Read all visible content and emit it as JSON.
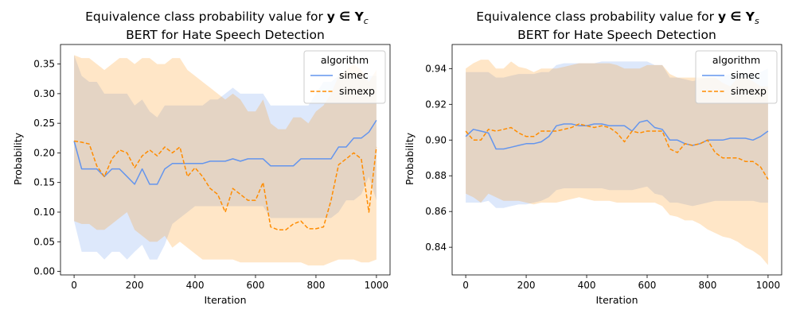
{
  "chart_data": [
    {
      "type": "line",
      "title_line1": "Equivalence class probability value for",
      "title_math": "y ∈ Y",
      "title_sub": "c",
      "title_line2": "BERT for Hate Speech Detection",
      "xlabel": "Iteration",
      "ylabel": "Probability",
      "xlim": [
        -45,
        1045
      ],
      "ylim": [
        -0.006,
        0.383
      ],
      "xticks": [
        0,
        200,
        400,
        600,
        800,
        1000
      ],
      "xtick_labels": [
        "0",
        "200",
        "400",
        "600",
        "800",
        "1000"
      ],
      "yticks": [
        0,
        0.05,
        0.1,
        0.15,
        0.2,
        0.25,
        0.3,
        0.35
      ],
      "ytick_labels": [
        "0.00",
        "0.05",
        "0.10",
        "0.15",
        "0.20",
        "0.25",
        "0.30",
        "0.35"
      ],
      "legend": {
        "title": "algorithm",
        "entries": [
          "simec",
          "simexp"
        ],
        "position": "top-right"
      },
      "x": [
        0,
        25,
        50,
        75,
        100,
        125,
        150,
        175,
        200,
        225,
        250,
        275,
        300,
        325,
        350,
        375,
        400,
        425,
        450,
        475,
        500,
        525,
        550,
        575,
        600,
        625,
        650,
        675,
        700,
        725,
        750,
        775,
        800,
        825,
        850,
        875,
        900,
        925,
        950,
        975,
        1000
      ],
      "series": [
        {
          "name": "simec",
          "color": "#6495ed",
          "dashed": false,
          "values": [
            0.22,
            0.173,
            0.173,
            0.173,
            0.16,
            0.173,
            0.173,
            0.16,
            0.147,
            0.173,
            0.147,
            0.147,
            0.173,
            0.182,
            0.182,
            0.182,
            0.182,
            0.182,
            0.186,
            0.186,
            0.186,
            0.19,
            0.186,
            0.19,
            0.19,
            0.19,
            0.178,
            0.178,
            0.178,
            0.178,
            0.19,
            0.19,
            0.19,
            0.19,
            0.19,
            0.21,
            0.21,
            0.225,
            0.225,
            0.235,
            0.255
          ],
          "lower": [
            0.085,
            0.033,
            0.033,
            0.033,
            0.02,
            0.033,
            0.033,
            0.02,
            0.033,
            0.045,
            0.02,
            0.02,
            0.045,
            0.08,
            0.09,
            0.1,
            0.11,
            0.11,
            0.11,
            0.11,
            0.11,
            0.11,
            0.11,
            0.11,
            0.11,
            0.11,
            0.09,
            0.09,
            0.09,
            0.09,
            0.09,
            0.09,
            0.09,
            0.09,
            0.09,
            0.1,
            0.12,
            0.12,
            0.13,
            0.16,
            0.12
          ],
          "upper": [
            0.365,
            0.33,
            0.32,
            0.32,
            0.3,
            0.3,
            0.3,
            0.3,
            0.28,
            0.29,
            0.27,
            0.26,
            0.28,
            0.28,
            0.28,
            0.28,
            0.28,
            0.28,
            0.29,
            0.29,
            0.3,
            0.31,
            0.3,
            0.3,
            0.3,
            0.3,
            0.28,
            0.28,
            0.28,
            0.28,
            0.28,
            0.28,
            0.3,
            0.32,
            0.32,
            0.33,
            0.33,
            0.33,
            0.33,
            0.33,
            0.33
          ]
        },
        {
          "name": "simexp",
          "color": "#ff8c00",
          "dashed": true,
          "values": [
            0.22,
            0.218,
            0.215,
            0.178,
            0.16,
            0.19,
            0.205,
            0.2,
            0.175,
            0.195,
            0.205,
            0.195,
            0.21,
            0.2,
            0.21,
            0.16,
            0.175,
            0.16,
            0.14,
            0.13,
            0.1,
            0.14,
            0.13,
            0.12,
            0.12,
            0.15,
            0.075,
            0.07,
            0.07,
            0.08,
            0.085,
            0.072,
            0.072,
            0.075,
            0.12,
            0.18,
            0.19,
            0.2,
            0.19,
            0.1,
            0.21
          ],
          "lower": [
            0.085,
            0.08,
            0.08,
            0.07,
            0.07,
            0.08,
            0.09,
            0.1,
            0.07,
            0.06,
            0.05,
            0.05,
            0.06,
            0.04,
            0.05,
            0.04,
            0.03,
            0.02,
            0.02,
            0.02,
            0.02,
            0.02,
            0.015,
            0.015,
            0.015,
            0.015,
            0.015,
            0.015,
            0.015,
            0.015,
            0.015,
            0.01,
            0.01,
            0.01,
            0.015,
            0.02,
            0.02,
            0.02,
            0.015,
            0.015,
            0.02
          ],
          "upper": [
            0.365,
            0.36,
            0.36,
            0.35,
            0.34,
            0.35,
            0.36,
            0.36,
            0.35,
            0.36,
            0.36,
            0.35,
            0.35,
            0.36,
            0.36,
            0.34,
            0.33,
            0.32,
            0.31,
            0.3,
            0.29,
            0.3,
            0.29,
            0.27,
            0.27,
            0.29,
            0.25,
            0.24,
            0.24,
            0.26,
            0.26,
            0.25,
            0.27,
            0.28,
            0.3,
            0.33,
            0.34,
            0.35,
            0.34,
            0.32,
            0.34
          ]
        }
      ]
    },
    {
      "type": "line",
      "title_line1": "Equivalence class probability value for",
      "title_math": "y ∈ Y",
      "title_sub": "s",
      "title_line2": "BERT for Hate Speech Detection",
      "xlabel": "Iteration",
      "ylabel": "Probability",
      "xlim": [
        -45,
        1045
      ],
      "ylim": [
        0.8245,
        0.9535
      ],
      "xticks": [
        0,
        200,
        400,
        600,
        800,
        1000
      ],
      "xtick_labels": [
        "0",
        "200",
        "400",
        "600",
        "800",
        "1000"
      ],
      "yticks": [
        0.84,
        0.86,
        0.88,
        0.9,
        0.92,
        0.94
      ],
      "ytick_labels": [
        "0.84",
        "0.86",
        "0.88",
        "0.90",
        "0.92",
        "0.94"
      ],
      "legend": {
        "title": "algorithm",
        "entries": [
          "simec",
          "simexp"
        ],
        "position": "top-right"
      },
      "x": [
        0,
        25,
        50,
        75,
        100,
        125,
        150,
        175,
        200,
        225,
        250,
        275,
        300,
        325,
        350,
        375,
        400,
        425,
        450,
        475,
        500,
        525,
        550,
        575,
        600,
        625,
        650,
        675,
        700,
        725,
        750,
        775,
        800,
        825,
        850,
        875,
        900,
        925,
        950,
        975,
        1000
      ],
      "series": [
        {
          "name": "simec",
          "color": "#6495ed",
          "dashed": false,
          "values": [
            0.902,
            0.906,
            0.905,
            0.904,
            0.895,
            0.895,
            0.896,
            0.897,
            0.898,
            0.898,
            0.899,
            0.902,
            0.908,
            0.909,
            0.909,
            0.908,
            0.908,
            0.909,
            0.909,
            0.908,
            0.908,
            0.908,
            0.905,
            0.91,
            0.911,
            0.907,
            0.906,
            0.9,
            0.9,
            0.898,
            0.897,
            0.898,
            0.9,
            0.9,
            0.9,
            0.901,
            0.901,
            0.901,
            0.9,
            0.902,
            0.905
          ],
          "lower": [
            0.865,
            0.865,
            0.865,
            0.866,
            0.862,
            0.862,
            0.863,
            0.864,
            0.864,
            0.865,
            0.866,
            0.868,
            0.872,
            0.873,
            0.873,
            0.873,
            0.873,
            0.873,
            0.873,
            0.872,
            0.872,
            0.872,
            0.872,
            0.873,
            0.874,
            0.87,
            0.869,
            0.865,
            0.865,
            0.864,
            0.863,
            0.864,
            0.865,
            0.866,
            0.866,
            0.866,
            0.866,
            0.866,
            0.866,
            0.865,
            0.865
          ],
          "upper": [
            0.938,
            0.938,
            0.938,
            0.938,
            0.935,
            0.935,
            0.936,
            0.937,
            0.937,
            0.937,
            0.938,
            0.938,
            0.942,
            0.943,
            0.943,
            0.943,
            0.943,
            0.943,
            0.944,
            0.944,
            0.944,
            0.944,
            0.944,
            0.944,
            0.944,
            0.942,
            0.942,
            0.935,
            0.935,
            0.934,
            0.933,
            0.934,
            0.935,
            0.935,
            0.936,
            0.937,
            0.937,
            0.937,
            0.937,
            0.938,
            0.94
          ]
        },
        {
          "name": "simexp",
          "color": "#ff8c00",
          "dashed": true,
          "values": [
            0.905,
            0.9,
            0.9,
            0.906,
            0.905,
            0.906,
            0.907,
            0.904,
            0.902,
            0.902,
            0.905,
            0.905,
            0.905,
            0.906,
            0.907,
            0.909,
            0.908,
            0.907,
            0.908,
            0.907,
            0.904,
            0.899,
            0.905,
            0.904,
            0.905,
            0.905,
            0.905,
            0.895,
            0.893,
            0.898,
            0.897,
            0.898,
            0.9,
            0.893,
            0.89,
            0.89,
            0.89,
            0.888,
            0.888,
            0.885,
            0.878
          ],
          "lower": [
            0.87,
            0.868,
            0.865,
            0.87,
            0.868,
            0.866,
            0.866,
            0.866,
            0.865,
            0.864,
            0.865,
            0.865,
            0.865,
            0.866,
            0.867,
            0.868,
            0.867,
            0.866,
            0.866,
            0.866,
            0.865,
            0.865,
            0.865,
            0.865,
            0.865,
            0.865,
            0.863,
            0.858,
            0.857,
            0.855,
            0.855,
            0.853,
            0.85,
            0.848,
            0.846,
            0.845,
            0.843,
            0.84,
            0.838,
            0.835,
            0.83
          ],
          "upper": [
            0.94,
            0.943,
            0.945,
            0.945,
            0.94,
            0.94,
            0.944,
            0.941,
            0.94,
            0.938,
            0.94,
            0.94,
            0.94,
            0.941,
            0.942,
            0.943,
            0.943,
            0.943,
            0.943,
            0.943,
            0.942,
            0.94,
            0.94,
            0.94,
            0.942,
            0.942,
            0.942,
            0.937,
            0.935,
            0.935,
            0.935,
            0.935,
            0.935,
            0.935,
            0.932,
            0.93,
            0.935,
            0.935,
            0.933,
            0.93,
            0.93
          ]
        }
      ]
    }
  ]
}
